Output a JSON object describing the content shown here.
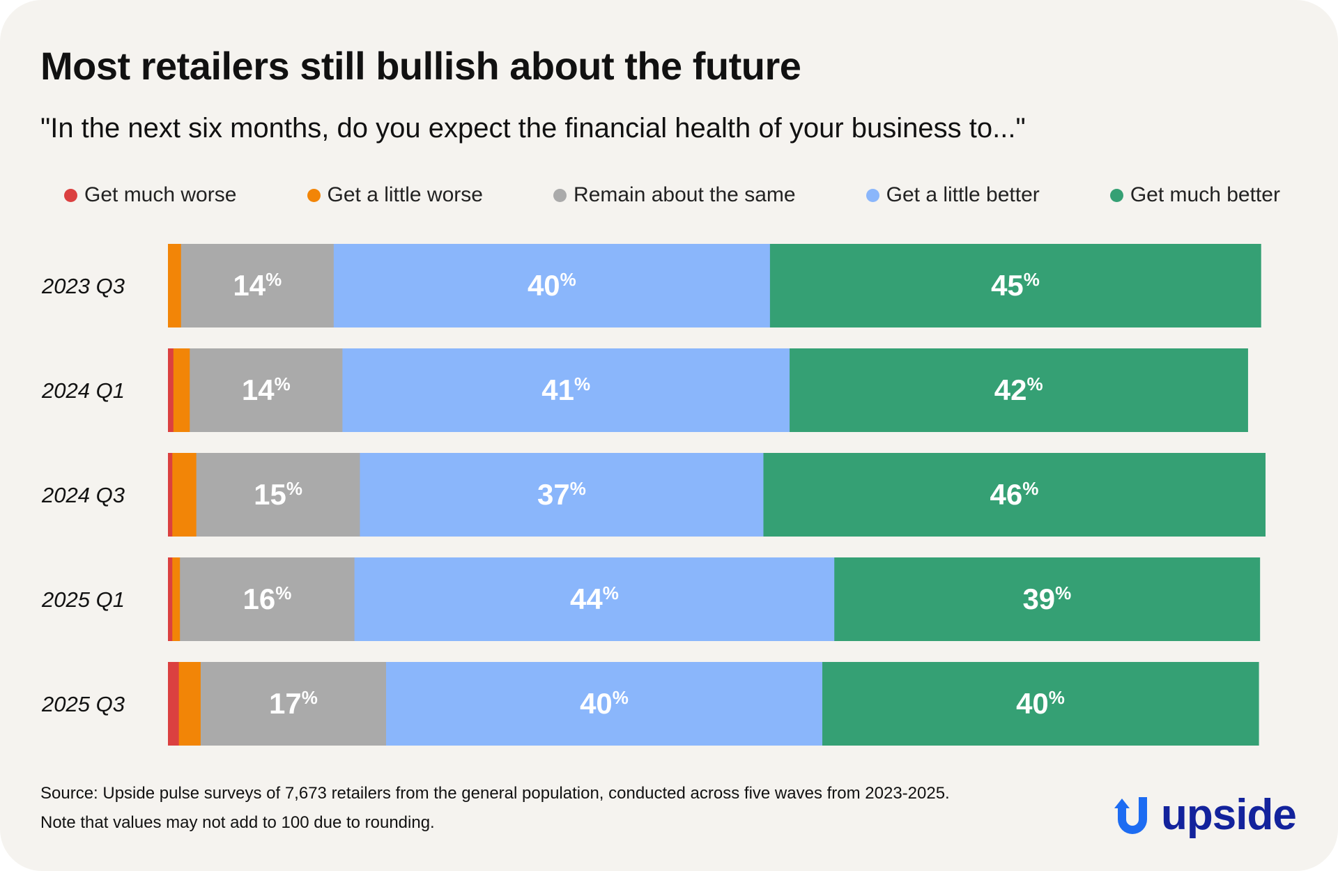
{
  "title": "Most retailers still bullish about the future",
  "subtitle": "\"In the next six months, do you expect the financial health of your business to...\"",
  "legend": [
    {
      "label": "Get much worse",
      "color": "#db4040"
    },
    {
      "label": "Get a little worse",
      "color": "#f28507"
    },
    {
      "label": "Remain about the same",
      "color": "#aaaaaa"
    },
    {
      "label": "Get a little better",
      "color": "#8ab6fb"
    },
    {
      "label": "Get much better",
      "color": "#35a074"
    }
  ],
  "chart_data": {
    "type": "bar",
    "orientation": "horizontal",
    "stacked": true,
    "title": "Most retailers still bullish about the future",
    "xlabel": "",
    "ylabel": "",
    "xlim": [
      0,
      100
    ],
    "categories": [
      "2023 Q3",
      "2024 Q1",
      "2024 Q3",
      "2025 Q1",
      "2025 Q3"
    ],
    "series": [
      {
        "name": "Get much worse",
        "color": "#db4040",
        "values": [
          0,
          0.5,
          0.4,
          0.4,
          1
        ],
        "labels": [
          "",
          "",
          "",
          "",
          ""
        ]
      },
      {
        "name": "Get a little worse",
        "color": "#f28507",
        "values": [
          1.2,
          1.5,
          2.2,
          0.7,
          2
        ],
        "labels": [
          "",
          "",
          "",
          "",
          ""
        ]
      },
      {
        "name": "Remain about the same",
        "color": "#aaaaaa",
        "values": [
          14,
          14,
          15,
          16,
          17
        ],
        "labels": [
          "14",
          "14",
          "15",
          "16",
          "17"
        ]
      },
      {
        "name": "Get a little better",
        "color": "#8ab6fb",
        "values": [
          40,
          41,
          37,
          44,
          40
        ],
        "labels": [
          "40",
          "41",
          "37",
          "44",
          "40"
        ]
      },
      {
        "name": "Get much better",
        "color": "#35a074",
        "values": [
          45,
          42,
          46,
          39,
          40
        ],
        "labels": [
          "45",
          "42",
          "46",
          "39",
          "40"
        ]
      }
    ],
    "percent_suffix": "%"
  },
  "footer": {
    "source": "Source: Upside pulse surveys of 7,673 retailers from the general population, conducted across five waves from 2023-2025.",
    "note": "Note that values may not add to 100 due to rounding."
  },
  "brand": {
    "name": "upside",
    "logo_icon": "upside-arrow-icon",
    "color": "#13239c",
    "icon_color": "#1d6cf2"
  }
}
